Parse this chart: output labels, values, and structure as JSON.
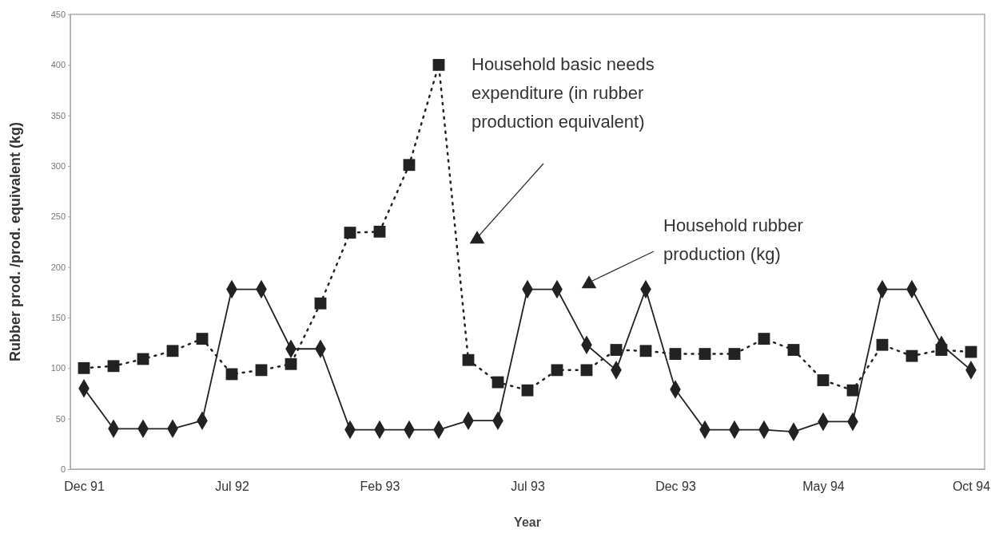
{
  "chart_data": {
    "type": "line",
    "xlabel": "Year",
    "ylabel": "Rubber prod. /prod. equivalent (kg)",
    "categories": [
      "Dec 91",
      null,
      null,
      null,
      null,
      "Jul 92",
      null,
      null,
      null,
      null,
      "Feb 93",
      null,
      null,
      null,
      null,
      "Jul 93",
      null,
      null,
      null,
      null,
      "Dec 93",
      null,
      null,
      null,
      null,
      "May 94",
      null,
      null,
      null,
      null,
      "Oct 94"
    ],
    "ylim": [
      0,
      450
    ],
    "yticks": [
      0,
      50,
      100,
      150,
      200,
      250,
      300,
      350,
      400,
      450
    ],
    "grid": false,
    "series": [
      {
        "name": "Household basic needs expenditure (in rubber production equivalent)",
        "color": "#222222",
        "marker": "square",
        "line_style": "dotted",
        "values": [
          100,
          102,
          109,
          117,
          129,
          94,
          98,
          104,
          164,
          234,
          235,
          301,
          400,
          108,
          86,
          78,
          98,
          98,
          118,
          117,
          114,
          114,
          114,
          129,
          118,
          88,
          78,
          123,
          112,
          118,
          116
        ]
      },
      {
        "name": "Household rubber production (kg)",
        "color": "#222222",
        "marker": "diamond",
        "line_style": "solid",
        "values": [
          80,
          40,
          40,
          40,
          48,
          178,
          178,
          119,
          119,
          39,
          39,
          39,
          39,
          48,
          48,
          178,
          178,
          123,
          98,
          178,
          79,
          39,
          39,
          39,
          37,
          47,
          47,
          178,
          178,
          123,
          98
        ]
      }
    ]
  }
}
